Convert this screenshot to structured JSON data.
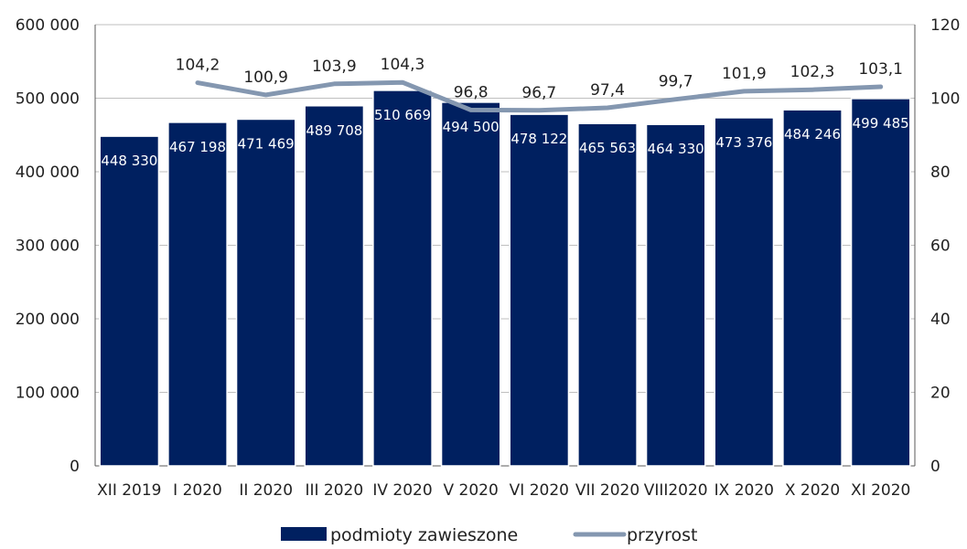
{
  "chart_data": {
    "type": "bar",
    "categories": [
      "XII 2019",
      "I 2020",
      "II 2020",
      "III 2020",
      "IV 2020",
      "V 2020",
      "VI 2020",
      "VII 2020",
      "VIII2020",
      "IX 2020",
      "X 2020",
      "XI 2020"
    ],
    "series": [
      {
        "name": "podmioty zawieszone",
        "type": "bar",
        "axis": "left",
        "values": [
          448330,
          467198,
          471469,
          489708,
          510669,
          494500,
          478122,
          465563,
          464330,
          473376,
          484246,
          499485
        ],
        "labels": [
          "448 330",
          "467 198",
          "471 469",
          "489 708",
          "510 669",
          "494 500",
          "478 122",
          "465 563",
          "464 330",
          "473 376",
          "484 246",
          "499 485"
        ],
        "color": "#002060"
      },
      {
        "name": "przyrost",
        "type": "line",
        "axis": "right",
        "values": [
          null,
          104.2,
          100.9,
          103.9,
          104.3,
          96.8,
          96.7,
          97.4,
          99.7,
          101.9,
          102.3,
          103.1
        ],
        "labels": [
          "",
          "104,2",
          "100,9",
          "103,9",
          "104,3",
          "96,8",
          "96,7",
          "97,4",
          "99,7",
          "101,9",
          "102,3",
          "103,1"
        ],
        "color": "#8497b0"
      }
    ],
    "ylim": [
      0,
      600000
    ],
    "yticks": [
      0,
      100000,
      200000,
      300000,
      400000,
      500000,
      600000
    ],
    "ytick_labels": [
      "0",
      "100 000",
      "200 000",
      "300 000",
      "400 000",
      "500 000",
      "600 000"
    ],
    "y2lim": [
      0,
      120
    ],
    "y2ticks": [
      0,
      20,
      40,
      60,
      80,
      100,
      120
    ],
    "y2tick_labels": [
      "0",
      "20",
      "40",
      "60",
      "80",
      "100",
      "120"
    ],
    "grid": true,
    "legend_position": "bottom",
    "title": "",
    "xlabel": "",
    "ylabel": ""
  }
}
